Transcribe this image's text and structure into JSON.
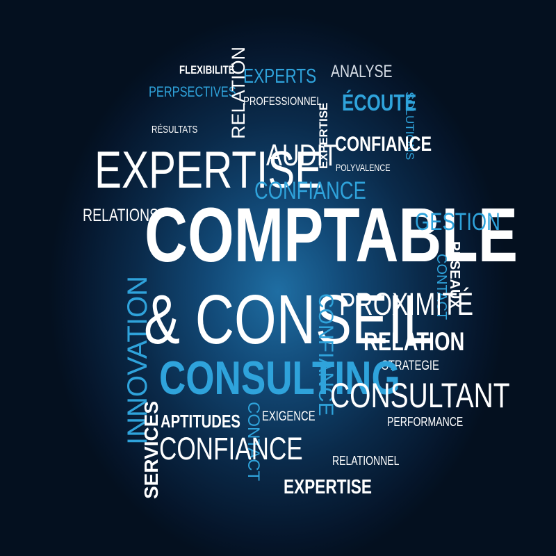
{
  "words": {
    "flexibilite": "FLEXIBILITÉ",
    "perspectives": "PERPSECTIVES",
    "relation_v": "RELATION",
    "experts": "EXPERTS",
    "professionnel": "PROFESSIONNEL",
    "expertise_v": "EXPERTISE",
    "analyse": "ANALYSE",
    "ecoute": "ÉCOUTE",
    "solutions_v": "SOLUTIONS",
    "resultats": "RÉSULTATS",
    "expertise_big": "EXPERTISE",
    "audit": "AUDIT",
    "confiance_top": "CONFIANCE",
    "polyvalence": "POLYVALENCE",
    "confiance_blue": "CONFIANCE",
    "relations": "RELATIONS",
    "comptable": "COMPTABLE",
    "gestion": "GESTION",
    "innovation_v": "INNOVATION",
    "reseaux_v": "RESEAUX",
    "contact_right_v": "CONTACT",
    "conseil": "& CONSEIL",
    "confiance_v": "CONFIANCE",
    "proximite": "PROXIMITÉ",
    "relation": "RELATION",
    "strategie": "STRATEGIE",
    "consulting": "CONSULTING",
    "services_v": "SERVICES",
    "consultant": "CONSULTANT",
    "contact_v": "CONTACT",
    "exigence": "EXIGENCE",
    "aptitudes": "APTITUDES",
    "performance": "PERFORMANCE",
    "confiance_low": "CONFIANCE",
    "relationnel": "RELATIONNEL",
    "expertise_bottom": "EXPERTISE"
  },
  "colors": {
    "white": "#ffffff",
    "blue": "#2fa3db",
    "background_center": "#1f6ea3",
    "background_edge": "#04101f"
  }
}
